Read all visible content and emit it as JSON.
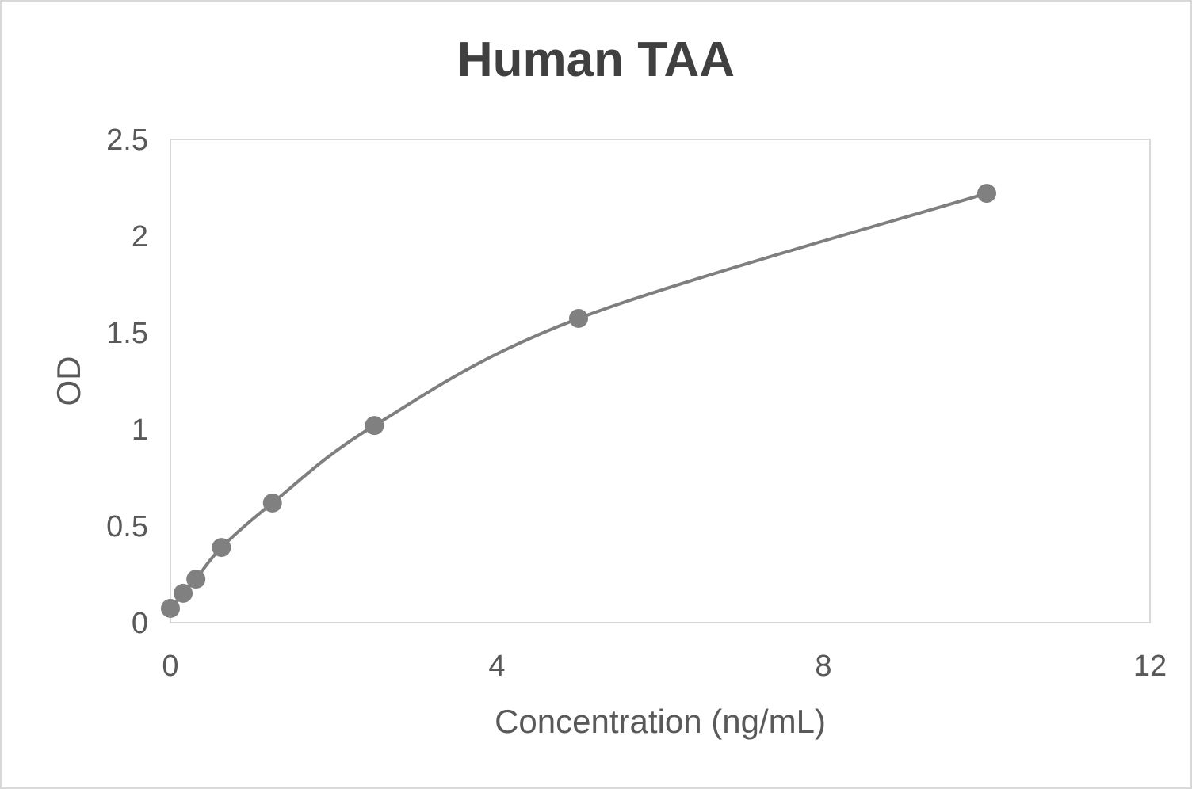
{
  "chart_data": {
    "type": "scatter",
    "title": "Human TAA",
    "xlabel": "Concentration (ng/mL)",
    "ylabel": "OD",
    "xlim": [
      0,
      12
    ],
    "ylim": [
      0,
      2.5
    ],
    "xticks": [
      "0",
      "4",
      "8",
      "12"
    ],
    "yticks": [
      "0",
      "0.5",
      "1",
      "1.5",
      "2",
      "2.5"
    ],
    "grid": false,
    "smooth_line": true,
    "series": [
      {
        "x": [
          0,
          0.156,
          0.3125,
          0.625,
          1.25,
          2.5,
          5,
          10
        ],
        "y": [
          0.074,
          0.152,
          0.225,
          0.389,
          0.619,
          1.02,
          1.574,
          2.221
        ]
      }
    ],
    "colors": {
      "series": "#808080",
      "line": "#7f7f7f",
      "plot_border": "#d9d9d9",
      "text": "#595959",
      "title": "#404040"
    }
  }
}
